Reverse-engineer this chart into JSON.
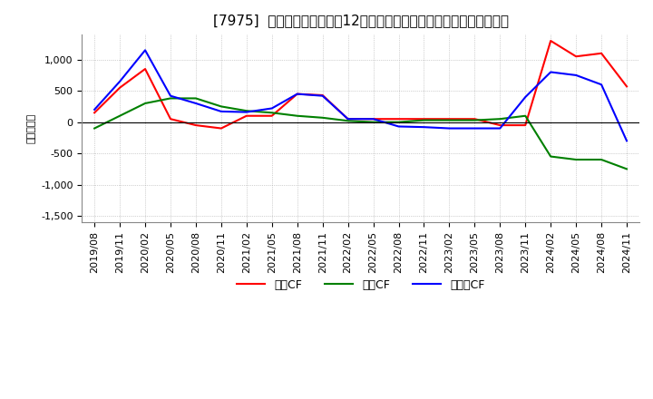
{
  "title": "[7975]  キャッシュフローの12か月移動合計の対前年同期増減額の推移",
  "ylabel": "（百万円）",
  "legend_labels": [
    "営業CF",
    "投資CF",
    "フリーCF"
  ],
  "line_colors": [
    "#ff0000",
    "#008000",
    "#0000ff"
  ],
  "ylim": [
    -1600,
    1400
  ],
  "yticks": [
    -1500,
    -1000,
    -500,
    0,
    500,
    1000
  ],
  "x_labels": [
    "2019/08",
    "2019/11",
    "2020/02",
    "2020/05",
    "2020/08",
    "2020/11",
    "2021/02",
    "2021/05",
    "2021/08",
    "2021/11",
    "2022/02",
    "2022/05",
    "2022/08",
    "2022/11",
    "2023/02",
    "2023/05",
    "2023/08",
    "2023/11",
    "2024/02",
    "2024/05",
    "2024/08",
    "2024/11"
  ],
  "operating_cf": [
    150,
    550,
    850,
    50,
    -50,
    -100,
    100,
    100,
    450,
    430,
    50,
    50,
    50,
    50,
    50,
    50,
    -50,
    -50,
    1300,
    1050,
    1100,
    570
  ],
  "investing_cf": [
    -100,
    100,
    300,
    380,
    380,
    250,
    180,
    150,
    100,
    70,
    20,
    0,
    0,
    30,
    30,
    30,
    50,
    100,
    -550,
    -600,
    -600,
    -750
  ],
  "free_cf": [
    200,
    650,
    1150,
    420,
    300,
    170,
    160,
    220,
    450,
    420,
    50,
    50,
    -70,
    -80,
    -100,
    -100,
    -100,
    400,
    800,
    750,
    600,
    -300
  ],
  "background_color": "#ffffff",
  "grid_color": "#aaaaaa",
  "grid_style": "dotted",
  "title_fontsize": 11,
  "tick_fontsize": 8,
  "legend_fontsize": 9
}
